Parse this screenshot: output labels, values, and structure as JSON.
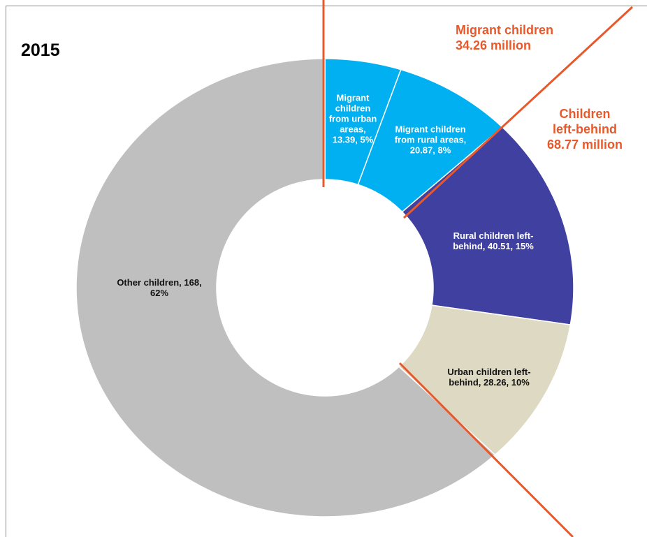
{
  "chart_data": {
    "type": "donut",
    "title": "2015",
    "labels": [
      "Migrant children from urban areas, 13.39, 5%",
      "Migrant children from rural areas, 20.87, 8%",
      "Rural children left-behind, 40.51, 15%",
      "Urban children left-behind, 28.26, 10%",
      "Other children, 168, 62%"
    ],
    "values": [
      13.39,
      20.87,
      40.51,
      28.26,
      168
    ],
    "colors": [
      "#00b0f0",
      "#00b0f0",
      "#4040a0",
      "#ddd9c3",
      "#bfbfbf"
    ],
    "annotations": [
      "Migrant children\n34.26 million",
      "Children\nleft-behind\n68.77 million"
    ]
  }
}
